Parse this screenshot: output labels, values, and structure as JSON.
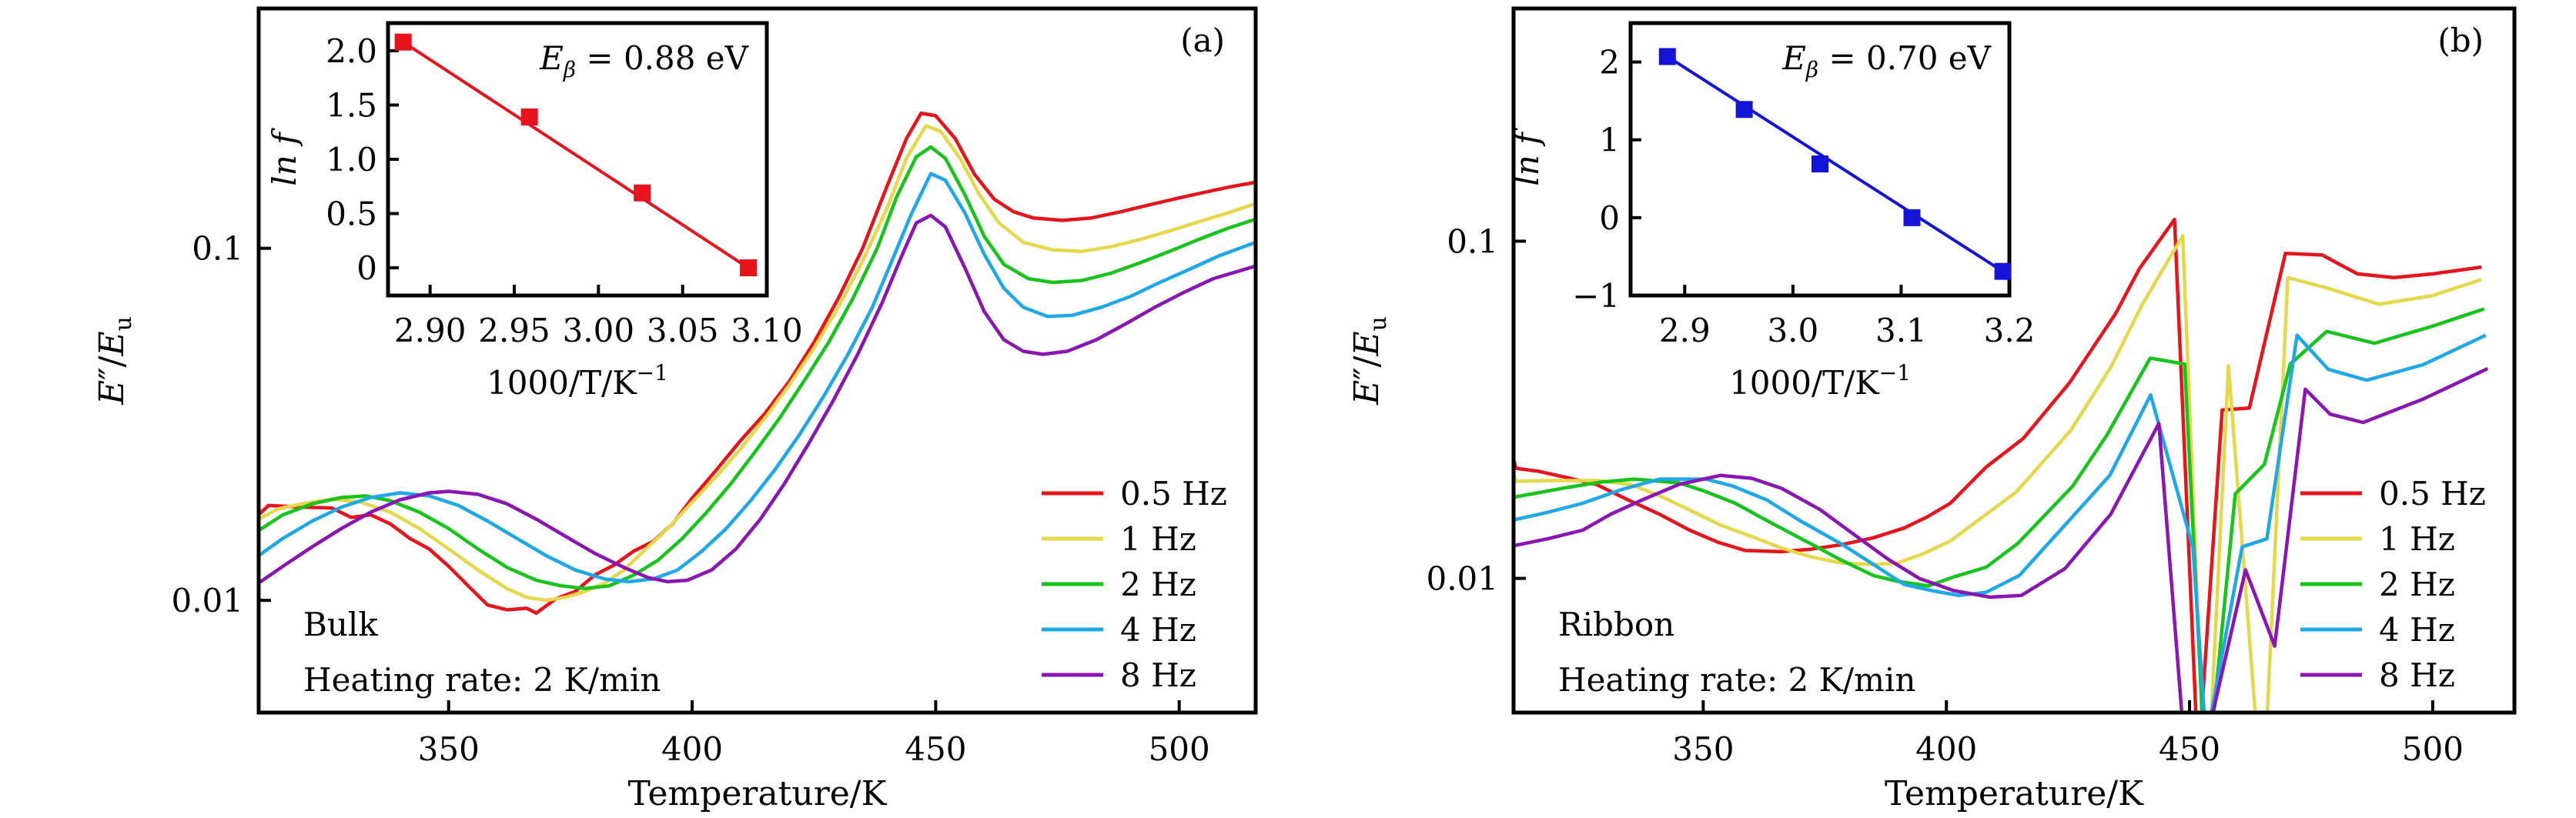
{
  "chart_data": [
    {
      "type": "line",
      "panel_label": "(a)",
      "sample_label": "Bulk",
      "sample_color": "#e8141c",
      "annotation": "Heating rate: 2 K/min",
      "xlabel": "Temperature/K",
      "ylabel": "E''/E_u",
      "ylabel_parts": {
        "main": "E",
        "prime": "″",
        "slash": "/",
        "sub_base": "E",
        "sub": "u"
      },
      "xlim": [
        311,
        515.7
      ],
      "ylim": [
        0.0048,
        0.48
      ],
      "yscale": "log",
      "xticks": [
        350,
        400,
        450,
        500
      ],
      "xtick_labels": [
        "350",
        "400",
        "450",
        "500"
      ],
      "yticks": [
        0.01,
        0.1
      ],
      "ytick_labels": [
        "0.01",
        "0.1"
      ],
      "legend": {
        "placement": "bottom-right"
      },
      "series": [
        {
          "name": "0.5 Hz",
          "color": "#e8141c",
          "x": [
            311,
            313,
            320,
            326,
            330,
            334,
            338,
            342,
            346,
            350,
            354,
            358,
            362,
            366,
            368,
            372,
            376,
            380,
            384,
            388,
            392,
            396,
            400,
            405,
            410,
            415,
            420,
            425,
            430,
            435,
            440,
            444,
            447,
            450,
            454,
            458,
            462,
            466,
            470,
            476,
            482,
            488,
            494,
            500,
            505,
            510,
            515.7
          ],
          "y": [
            0.0175,
            0.0186,
            0.0184,
            0.0183,
            0.0172,
            0.0175,
            0.0165,
            0.015,
            0.014,
            0.0125,
            0.011,
            0.0097,
            0.0094,
            0.0095,
            0.0092,
            0.0101,
            0.0106,
            0.0118,
            0.0126,
            0.0138,
            0.0147,
            0.0165,
            0.0195,
            0.0235,
            0.0285,
            0.034,
            0.042,
            0.054,
            0.072,
            0.1,
            0.15,
            0.205,
            0.242,
            0.238,
            0.205,
            0.162,
            0.138,
            0.127,
            0.122,
            0.12,
            0.122,
            0.127,
            0.133,
            0.139,
            0.144,
            0.149,
            0.154
          ]
        },
        {
          "name": "1 Hz",
          "color": "#e5d84a",
          "x": [
            311,
            315,
            320,
            326,
            332,
            338,
            344,
            350,
            356,
            362,
            366,
            370,
            374,
            378,
            382,
            386,
            390,
            395,
            400,
            405,
            410,
            415,
            420,
            425,
            430,
            435,
            440,
            444,
            448,
            451,
            455,
            459,
            463,
            468,
            474,
            480,
            486,
            492,
            498,
            504,
            510,
            515.7
          ],
          "y": [
            0.017,
            0.0182,
            0.0188,
            0.0194,
            0.019,
            0.0178,
            0.016,
            0.014,
            0.0122,
            0.0108,
            0.0102,
            0.01,
            0.0102,
            0.0106,
            0.0112,
            0.0122,
            0.0138,
            0.016,
            0.019,
            0.0225,
            0.027,
            0.033,
            0.041,
            0.052,
            0.068,
            0.092,
            0.13,
            0.18,
            0.223,
            0.215,
            0.18,
            0.142,
            0.118,
            0.104,
            0.099,
            0.098,
            0.101,
            0.106,
            0.112,
            0.119,
            0.126,
            0.134
          ]
        },
        {
          "name": "2 Hz",
          "color": "#16c41c",
          "x": [
            311,
            316,
            322,
            328,
            333,
            338,
            344,
            350,
            356,
            362,
            368,
            373,
            378,
            383,
            388,
            393,
            398,
            403,
            408,
            413,
            418,
            423,
            428,
            433,
            438,
            442,
            446,
            449,
            452,
            456,
            460,
            464,
            469,
            474,
            480,
            486,
            492,
            498,
            504,
            510,
            515.7
          ],
          "y": [
            0.0158,
            0.0175,
            0.0188,
            0.0196,
            0.0198,
            0.0192,
            0.0178,
            0.016,
            0.014,
            0.0124,
            0.0114,
            0.011,
            0.0108,
            0.011,
            0.0118,
            0.013,
            0.015,
            0.0178,
            0.0215,
            0.0265,
            0.033,
            0.042,
            0.054,
            0.072,
            0.1,
            0.14,
            0.182,
            0.194,
            0.18,
            0.142,
            0.108,
            0.09,
            0.082,
            0.08,
            0.081,
            0.085,
            0.091,
            0.098,
            0.106,
            0.114,
            0.121
          ]
        },
        {
          "name": "4 Hz",
          "color": "#1ea8e8",
          "x": [
            311,
            316,
            322,
            328,
            334,
            340,
            346,
            352,
            358,
            364,
            370,
            376,
            382,
            387,
            392,
            397,
            402,
            407,
            412,
            417,
            422,
            427,
            432,
            437,
            441,
            445,
            449,
            452,
            456,
            460,
            464,
            468,
            473,
            478,
            484,
            490,
            496,
            502,
            508,
            515.7
          ],
          "y": [
            0.0134,
            0.015,
            0.0168,
            0.0184,
            0.0196,
            0.0202,
            0.0198,
            0.0186,
            0.0168,
            0.015,
            0.0134,
            0.0122,
            0.0115,
            0.0113,
            0.0115,
            0.0122,
            0.0138,
            0.016,
            0.0192,
            0.0235,
            0.0295,
            0.038,
            0.05,
            0.068,
            0.092,
            0.125,
            0.163,
            0.156,
            0.126,
            0.096,
            0.077,
            0.068,
            0.064,
            0.0645,
            0.068,
            0.073,
            0.08,
            0.087,
            0.095,
            0.104
          ]
        },
        {
          "name": "8 Hz",
          "color": "#8a14b4",
          "x": [
            311,
            316,
            322,
            328,
            334,
            340,
            346,
            350,
            356,
            362,
            368,
            374,
            380,
            386,
            391,
            395,
            399,
            404,
            409,
            414,
            419,
            424,
            429,
            434,
            439,
            443,
            446,
            449,
            452,
            456,
            460,
            464,
            468,
            472,
            477,
            483,
            489,
            495,
            501,
            507,
            515.7
          ],
          "y": [
            0.0112,
            0.0125,
            0.0142,
            0.016,
            0.0178,
            0.0193,
            0.0202,
            0.0204,
            0.02,
            0.0188,
            0.017,
            0.0152,
            0.0136,
            0.0124,
            0.0116,
            0.0113,
            0.0114,
            0.0122,
            0.014,
            0.017,
            0.0215,
            0.028,
            0.037,
            0.05,
            0.07,
            0.095,
            0.118,
            0.124,
            0.115,
            0.088,
            0.066,
            0.055,
            0.051,
            0.05,
            0.051,
            0.055,
            0.061,
            0.068,
            0.075,
            0.082,
            0.089
          ]
        }
      ],
      "inset": {
        "type": "scatter",
        "color": "#e8141c",
        "xlabel": "1000/T/K^-1",
        "ylabel": "ln f",
        "xlim": [
          2.875,
          3.1
        ],
        "ylim": [
          -0.255,
          2.255
        ],
        "xticks": [
          2.9,
          2.95,
          3.0,
          3.05,
          3.1
        ],
        "xtick_labels": [
          "2.90",
          "2.95",
          "3.00",
          "3.05",
          "3.10"
        ],
        "yticks": [
          0,
          0.5,
          1.0,
          1.5,
          2.0
        ],
        "ytick_labels": [
          "0",
          "0.5",
          "1.0",
          "1.5",
          "2.0"
        ],
        "annotation": "E_β = 0.88 eV",
        "annotation_parts": {
          "symbol": "E",
          "sub": "β",
          "rest": " = 0.88 eV"
        },
        "x": [
          2.884,
          2.959,
          3.026,
          3.089
        ],
        "y": [
          2.08,
          1.39,
          0.69,
          0.0
        ],
        "fit_line": {
          "x": [
            2.884,
            3.089
          ],
          "y": [
            2.08,
            0.0
          ]
        }
      }
    },
    {
      "type": "line",
      "panel_label": "(b)",
      "sample_label": "Ribbon",
      "sample_color": "#1414d8",
      "annotation": "Heating rate: 2 K/min",
      "xlabel": "Temperature/K",
      "ylabel": "E''/E_u",
      "ylabel_parts": {
        "main": "E",
        "prime": "″",
        "slash": "/",
        "sub_base": "E",
        "sub": "u"
      },
      "xlim": [
        311,
        516.8
      ],
      "ylim": [
        0.004,
        0.49
      ],
      "yscale": "log",
      "xticks": [
        350,
        400,
        450,
        500
      ],
      "xtick_labels": [
        "350",
        "400",
        "450",
        "500"
      ],
      "yticks": [
        0.01,
        0.1
      ],
      "ytick_labels": [
        "0.01",
        "0.1"
      ],
      "legend": {
        "placement": "bottom-right"
      },
      "series": [
        {
          "name": "0.5 Hz",
          "color": "#e8141c",
          "x": [
            311,
            311.5,
            316,
            322,
            328,
            334.5,
            341,
            347.2,
            353,
            358.6,
            366,
            372,
            378.6,
            385,
            391.3,
            396,
            400.8,
            408.2,
            415.8,
            425.3,
            434.8,
            439.7,
            446.9,
            451.3,
            452.5,
            456.7,
            462.3,
            469.7,
            477.3,
            484.5,
            492,
            500,
            510
          ],
          "y": [
            0.0225,
            0.0212,
            0.0208,
            0.0199,
            0.019,
            0.0171,
            0.0155,
            0.0139,
            0.0128,
            0.0121,
            0.012,
            0.0122,
            0.0126,
            0.0132,
            0.0141,
            0.0152,
            0.0167,
            0.0214,
            0.026,
            0.038,
            0.061,
            0.083,
            0.116,
            0.004,
            0.004,
            0.0316,
            0.032,
            0.092,
            0.091,
            0.08,
            0.078,
            0.08,
            0.0838
          ]
        },
        {
          "name": "1 Hz",
          "color": "#e5d84a",
          "x": [
            311,
            311.5,
            318,
            328.3,
            335,
            341,
            347,
            353.5,
            360,
            366.1,
            372,
            378.6,
            385,
            390,
            395,
            400.8,
            408.2,
            414.3,
            425.6,
            433.9,
            440.3,
            448.6,
            452.5,
            454.5,
            458,
            463.5,
            466,
            470.2,
            478,
            489,
            500,
            510
          ],
          "y": [
            0.0205,
            0.0194,
            0.0195,
            0.0195,
            0.019,
            0.0176,
            0.016,
            0.0144,
            0.0133,
            0.0123,
            0.0116,
            0.0111,
            0.011,
            0.0111,
            0.0118,
            0.0129,
            0.0155,
            0.018,
            0.0275,
            0.0425,
            0.065,
            0.1037,
            0.004,
            0.004,
            0.0427,
            0.004,
            0.004,
            0.078,
            0.0728,
            0.065,
            0.069,
            0.0769
          ]
        },
        {
          "name": "2 Hz",
          "color": "#16c41c",
          "x": [
            311,
            322,
            329,
            335.8,
            345,
            350,
            356.6,
            364,
            372.4,
            378,
            385,
            390,
            396.3,
            401.5,
            408.2,
            414.7,
            426,
            433,
            441.9,
            449,
            452.6,
            455,
            459.4,
            465.4,
            470.7,
            478.2,
            488,
            500,
            510.6
          ],
          "y": [
            0.0174,
            0.0186,
            0.0193,
            0.0197,
            0.0192,
            0.0182,
            0.0167,
            0.0146,
            0.0126,
            0.0114,
            0.0102,
            0.0098,
            0.0095,
            0.0101,
            0.0108,
            0.0127,
            0.0188,
            0.0266,
            0.045,
            0.0432,
            0.004,
            0.004,
            0.0178,
            0.0218,
            0.0432,
            0.054,
            0.0498,
            0.056,
            0.063
          ]
        },
        {
          "name": "4 Hz",
          "color": "#1ea8e8",
          "x": [
            311,
            318,
            325.2,
            333,
            341,
            350.5,
            356,
            363,
            370,
            378.6,
            385,
            391.3,
            397,
            402.6,
            408.2,
            415,
            424.4,
            433.6,
            442,
            450.7,
            453,
            454.5,
            460.8,
            465.9,
            472.1,
            478.5,
            486.4,
            498,
            510.9
          ],
          "y": [
            0.0149,
            0.0157,
            0.0167,
            0.0183,
            0.0197,
            0.0197,
            0.0188,
            0.0171,
            0.0148,
            0.0126,
            0.011,
            0.0096,
            0.0092,
            0.0089,
            0.0091,
            0.0102,
            0.0144,
            0.0202,
            0.035,
            0.0123,
            0.004,
            0.004,
            0.0124,
            0.0131,
            0.0526,
            0.0417,
            0.0387,
            0.043,
            0.0526
          ]
        },
        {
          "name": "8 Hz",
          "color": "#8a14b4",
          "x": [
            311,
            318,
            325.2,
            331,
            337.5,
            345,
            353.5,
            360,
            366.1,
            374,
            381.9,
            388,
            394.4,
            401.5,
            409,
            415.4,
            424.4,
            433.8,
            443.7,
            448.4,
            454.8,
            461.5,
            467.5,
            473.8,
            478.9,
            485.7,
            498,
            511.3
          ],
          "y": [
            0.0125,
            0.0131,
            0.0139,
            0.0155,
            0.0171,
            0.019,
            0.0202,
            0.0198,
            0.0185,
            0.016,
            0.0132,
            0.0114,
            0.01,
            0.0092,
            0.0088,
            0.0089,
            0.0107,
            0.0155,
            0.0288,
            0.004,
            0.004,
            0.0106,
            0.0063,
            0.0364,
            0.0307,
            0.029,
            0.034,
            0.0419
          ]
        }
      ],
      "inset": {
        "type": "scatter",
        "color": "#1414d8",
        "xlabel": "1000/T/K^-1",
        "ylabel": "ln f",
        "xlim": [
          2.85,
          3.2
        ],
        "ylim": [
          -1.0,
          2.5
        ],
        "xticks": [
          2.9,
          3.0,
          3.1,
          3.2
        ],
        "xtick_labels": [
          "2.9",
          "3.0",
          "3.1",
          "3.2"
        ],
        "yticks": [
          -1,
          0,
          1,
          2
        ],
        "ytick_labels": [
          "−1",
          "0",
          "1",
          "2"
        ],
        "annotation": "E_β = 0.70 eV",
        "annotation_parts": {
          "symbol": "E",
          "sub": "β",
          "rest": " = 0.70 eV"
        },
        "x": [
          2.884,
          2.955,
          3.025,
          3.11,
          3.194
        ],
        "y": [
          2.07,
          1.39,
          0.69,
          0.0,
          -0.69
        ],
        "fit_line": {
          "x": [
            2.884,
            3.194
          ],
          "y": [
            2.07,
            -0.69
          ]
        }
      }
    }
  ]
}
